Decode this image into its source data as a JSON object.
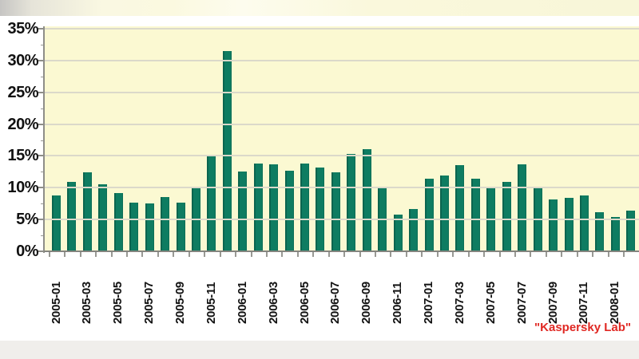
{
  "page": {
    "background": "#FFFFFF"
  },
  "chart_data": {
    "type": "bar",
    "title": "",
    "xlabel": "",
    "ylabel": "",
    "ylim": [
      0,
      35
    ],
    "grid": "horizontal",
    "legend": "none",
    "credit": "\"Kaspersky Lab\"",
    "credit_color": "#E02823",
    "bar_color": "#0E7C61",
    "plot_bg_color": "#FBF9D2",
    "gridline_color": "#DBD9CA",
    "zero_line_color": "#85857F",
    "axis_color": "#8E8E88",
    "tick_color": "#999994",
    "label_color": "#111111",
    "y_tick_labels": [
      "0%",
      "5%",
      "10%",
      "15%",
      "20%",
      "25%",
      "30%",
      "35%"
    ],
    "x_labels_shown": [
      "2005-01",
      "2005-03",
      "2005-05",
      "2005-07",
      "2005-09",
      "2005-11",
      "2006-01",
      "2006-03",
      "2006-05",
      "2006-07",
      "2006-09",
      "2006-11",
      "2007-01",
      "2007-03",
      "2007-05",
      "2007-07",
      "2007-09",
      "2007-11",
      "2008-01"
    ],
    "x_label_every": 2,
    "categories": [
      "2005-01",
      "2005-02",
      "2005-03",
      "2005-04",
      "2005-05",
      "2005-06",
      "2005-07",
      "2005-08",
      "2005-09",
      "2005-10",
      "2005-11",
      "2005-12",
      "2006-01",
      "2006-02",
      "2006-03",
      "2006-04",
      "2006-05",
      "2006-06",
      "2006-07",
      "2006-08",
      "2006-09",
      "2006-10",
      "2006-11",
      "2006-12",
      "2007-01",
      "2007-02",
      "2007-03",
      "2007-04",
      "2007-05",
      "2007-06",
      "2007-07",
      "2007-08",
      "2007-09",
      "2007-10",
      "2007-11",
      "2007-12",
      "2008-01",
      "2008-02"
    ],
    "values": [
      8.8,
      10.9,
      12.4,
      10.6,
      9.1,
      7.7,
      7.5,
      8.5,
      7.7,
      9.9,
      15.2,
      31.5,
      12.6,
      13.8,
      13.7,
      12.7,
      13.8,
      13.2,
      12.4,
      15.3,
      16.0,
      10.2,
      5.8,
      6.6,
      11.4,
      11.9,
      13.6,
      11.4,
      10.2,
      10.9,
      13.7,
      9.9,
      8.2,
      8.4,
      8.8,
      6.1,
      5.4,
      6.4
    ]
  }
}
